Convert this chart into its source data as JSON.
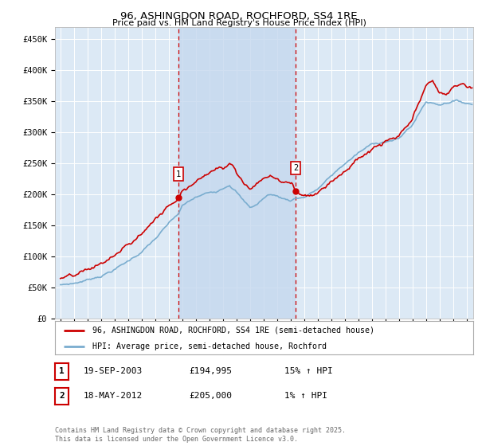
{
  "title": "96, ASHINGDON ROAD, ROCHFORD, SS4 1RE",
  "subtitle": "Price paid vs. HM Land Registry's House Price Index (HPI)",
  "ylim": [
    0,
    470000
  ],
  "yticks": [
    0,
    50000,
    100000,
    150000,
    200000,
    250000,
    300000,
    350000,
    400000,
    450000
  ],
  "ytick_labels": [
    "£0",
    "£50K",
    "£100K",
    "£150K",
    "£200K",
    "£250K",
    "£300K",
    "£350K",
    "£400K",
    "£450K"
  ],
  "background_color": "#ffffff",
  "plot_bg_color": "#dce9f5",
  "grid_color": "#ffffff",
  "shade_color": "#c5d8ee",
  "sale1_date": 2003.72,
  "sale1_price": 194995,
  "sale2_date": 2012.38,
  "sale2_price": 205000,
  "legend_label_red": "96, ASHINGDON ROAD, ROCHFORD, SS4 1RE (semi-detached house)",
  "legend_label_blue": "HPI: Average price, semi-detached house, Rochford",
  "table_row1": [
    "1",
    "19-SEP-2003",
    "£194,995",
    "15% ↑ HPI"
  ],
  "table_row2": [
    "2",
    "18-MAY-2012",
    "£205,000",
    "1% ↑ HPI"
  ],
  "footer": "Contains HM Land Registry data © Crown copyright and database right 2025.\nThis data is licensed under the Open Government Licence v3.0.",
  "red_color": "#cc0000",
  "blue_color": "#7aadcf",
  "vline_color": "#cc0000"
}
